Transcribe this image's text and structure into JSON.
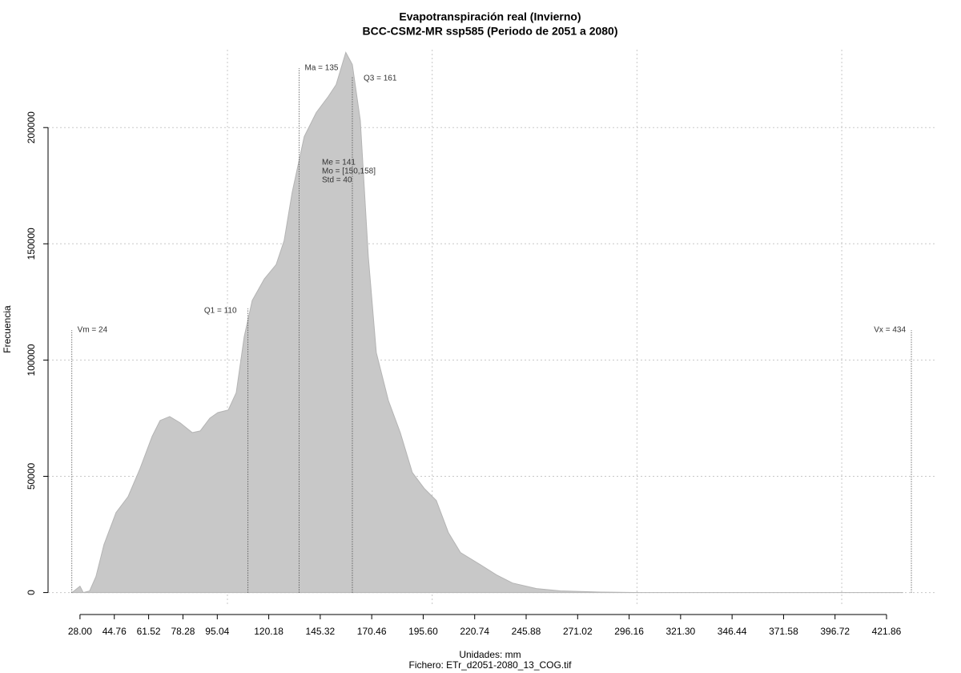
{
  "chart_data": {
    "type": "area",
    "title": "Evapotranspiración real (Invierno)",
    "subtitle": "BCC-CSM2-MR ssp585 (Periodo de 2051 a 2080)",
    "xlabel": "Unidades: mm",
    "caption": "Fichero: ETr_d2051-2080_13_COG.tif",
    "ylabel": "Frecuencia",
    "color": "#c8c8c8",
    "x": [
      24.1,
      28,
      29.6,
      32.7,
      35.8,
      39.7,
      45.6,
      51.5,
      57.3,
      63.2,
      67.1,
      71.8,
      76.9,
      82.8,
      86.7,
      91.4,
      95.3,
      100.4,
      104.3,
      108.2,
      112.1,
      118,
      123.8,
      127.7,
      131.6,
      137.5,
      143.4,
      149.2,
      153.1,
      157.8,
      161,
      164.9,
      168.8,
      172.7,
      178.6,
      184.4,
      190.3,
      196.2,
      202,
      207.9,
      213.8,
      223.5,
      231.4,
      239.2,
      250.9,
      262.6,
      282.2,
      301.8,
      430
    ],
    "values": [
      0,
      2750,
      0,
      700,
      6900,
      20600,
      34400,
      41300,
      53300,
      67100,
      74000,
      75700,
      73000,
      68800,
      69500,
      75000,
      77400,
      78500,
      86000,
      110100,
      125600,
      134900,
      141100,
      151400,
      172100,
      196100,
      206500,
      213300,
      218500,
      232300,
      227100,
      203000,
      144500,
      103200,
      82600,
      68800,
      51600,
      44700,
      39600,
      25800,
      17200,
      12000,
      7600,
      4100,
      1700,
      700,
      200,
      0,
      0
    ],
    "xlim": [
      12.4,
      446.5
    ],
    "ylim": [
      -6000,
      233500
    ],
    "xticks": [
      {
        "value": 28,
        "label": "28.00"
      },
      44.76,
      61.52,
      78.28,
      95.04,
      120.18,
      145.32,
      170.46,
      {
        "value": 195.6,
        "label": "195.60"
      },
      220.74,
      245.88,
      271.02,
      296.16,
      {
        "value": 321.3,
        "label": "321.30"
      },
      346.44,
      371.58,
      396.72,
      421.86
    ],
    "xgrid": [
      100,
      200,
      300,
      400
    ],
    "yticks": [
      0,
      50000,
      100000,
      150000,
      200000
    ],
    "grid": true,
    "annotations": [
      {
        "label": "Vm = 24",
        "x": 24
      },
      {
        "label": "Q1 = 110",
        "x": 110
      },
      {
        "label": "Ma = 135",
        "x": 135
      },
      {
        "label": "Q3 = 161",
        "x": 161
      },
      {
        "label": "Vx = 434",
        "x": 434
      }
    ],
    "stats": [
      "Me = 141",
      "Mo = [150,158]",
      "Std = 40"
    ]
  }
}
